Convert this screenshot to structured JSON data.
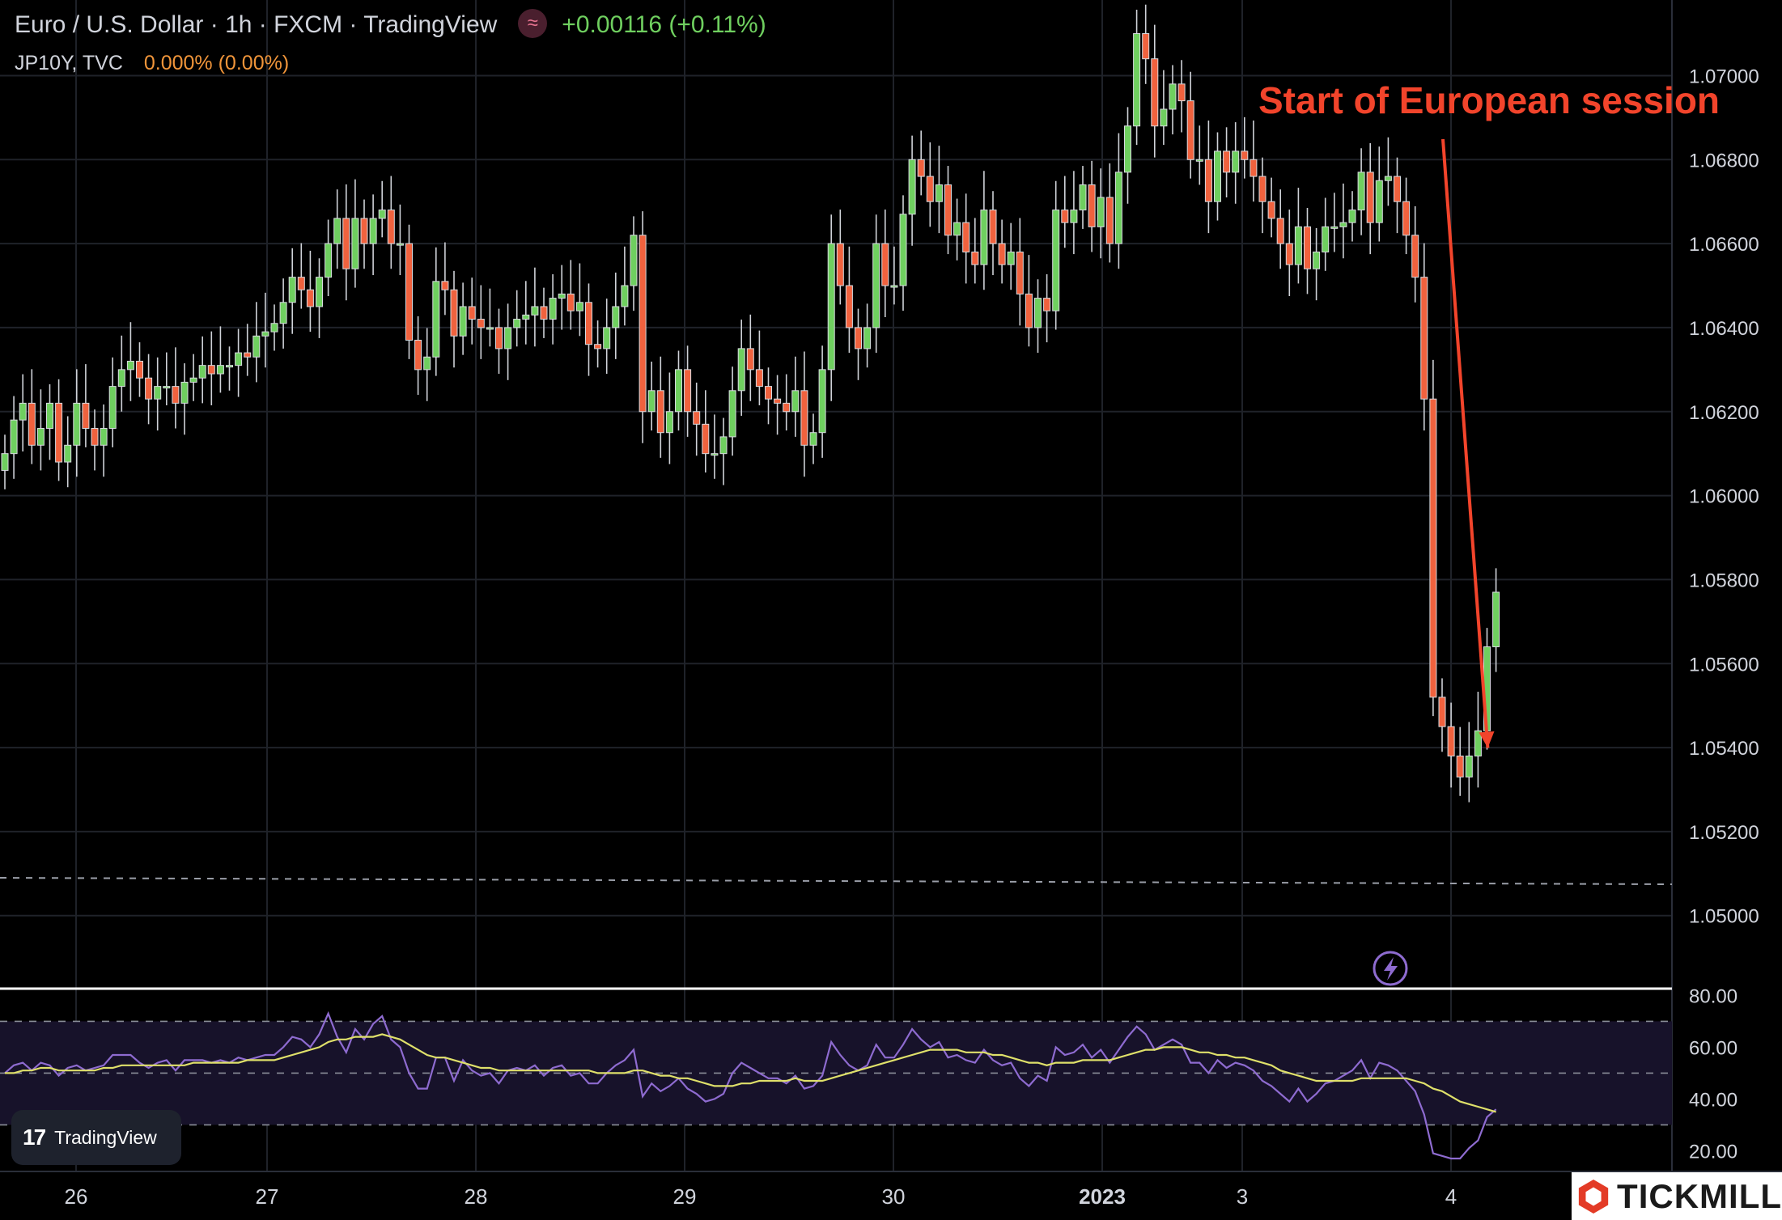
{
  "header": {
    "title": "Euro / U.S. Dollar · 1h · FXCM · TradingView",
    "change": "+0.00116 (+0.11%)",
    "secondary_symbol": "JP10Y, TVC",
    "secondary_value": "0.000% (0.00%)",
    "logo_glyph": "≈"
  },
  "badges": {
    "tradingview_label": "TradingView",
    "tradingview_mark": "17",
    "tickmill_label": "TICKMILL"
  },
  "colors": {
    "up": "#6fcf5f",
    "down": "#f0623e",
    "annotation": "#f2442b",
    "rsi": "#8e6bd0",
    "rsi_ma": "#dfe06a"
  },
  "chart_data": [
    {
      "type": "candlestick",
      "title": "Euro / U.S. Dollar · 1h · FXCM · TradingView",
      "xlabel": "",
      "ylabel": "",
      "x_tick_labels": [
        "26",
        "27",
        "28",
        "29",
        "30",
        "2023",
        "3",
        "4"
      ],
      "y_tick_labels": [
        "1.07000",
        "1.06800",
        "1.06600",
        "1.06400",
        "1.06200",
        "1.06000",
        "1.05800",
        "1.05600",
        "1.05400",
        "1.05200",
        "1.05000"
      ],
      "y_ticks": [
        1.07,
        1.068,
        1.066,
        1.064,
        1.062,
        1.06,
        1.058,
        1.056,
        1.054,
        1.052,
        1.05
      ],
      "ylim": [
        1.0483,
        1.0718
      ],
      "dashed_level": 1.0509,
      "annotation": {
        "text": "Start of European session",
        "points_to_bar": 164
      },
      "ohlc_close_sequence": [
        1.061,
        1.0618,
        1.0622,
        1.0612,
        1.0616,
        1.0622,
        1.0608,
        1.0612,
        1.0622,
        1.0616,
        1.0612,
        1.0616,
        1.0626,
        1.063,
        1.0632,
        1.0628,
        1.0623,
        1.0626,
        1.0626,
        1.0622,
        1.0627,
        1.0628,
        1.0631,
        1.0629,
        1.0631,
        1.0631,
        1.0634,
        1.0633,
        1.0638,
        1.0639,
        1.0641,
        1.0646,
        1.0652,
        1.0649,
        1.0645,
        1.0652,
        1.066,
        1.0666,
        1.0654,
        1.0666,
        1.066,
        1.0666,
        1.0668,
        1.066,
        1.066,
        1.0637,
        1.063,
        1.0633,
        1.0651,
        1.0649,
        1.0638,
        1.0645,
        1.0642,
        1.064,
        1.064,
        1.0635,
        1.064,
        1.0642,
        1.0643,
        1.0645,
        1.0642,
        1.0647,
        1.0648,
        1.0644,
        1.0646,
        1.0636,
        1.0635,
        1.064,
        1.0645,
        1.065,
        1.0662,
        1.062,
        1.0625,
        1.0615,
        1.062,
        1.063,
        1.062,
        1.0617,
        1.061,
        1.061,
        1.0614,
        1.0625,
        1.0635,
        1.063,
        1.0626,
        1.0623,
        1.0622,
        1.062,
        1.0625,
        1.0612,
        1.0615,
        1.063,
        1.066,
        1.065,
        1.064,
        1.0635,
        1.064,
        1.066,
        1.065,
        1.065,
        1.0667,
        1.068,
        1.0676,
        1.067,
        1.0674,
        1.0662,
        1.0665,
        1.0658,
        1.0655,
        1.0668,
        1.066,
        1.0655,
        1.0658,
        1.0648,
        1.064,
        1.0647,
        1.0644,
        1.0668,
        1.0665,
        1.0668,
        1.0674,
        1.0664,
        1.0671,
        1.066,
        1.0677,
        1.0688,
        1.071,
        1.0704,
        1.0688,
        1.0692,
        1.0698,
        1.0694,
        1.068,
        1.068,
        1.067,
        1.0682,
        1.0677,
        1.0682,
        1.068,
        1.0676,
        1.067,
        1.0666,
        1.066,
        1.0655,
        1.0664,
        1.0654,
        1.0658,
        1.0664,
        1.0664,
        1.0665,
        1.0668,
        1.0677,
        1.0665,
        1.0675,
        1.0676,
        1.067,
        1.0662,
        1.0652,
        1.0623,
        1.0552,
        1.0545,
        1.0538,
        1.0533,
        1.0538,
        1.0544,
        1.0564,
        1.0577
      ]
    },
    {
      "type": "line",
      "title": "",
      "y_tick_labels": [
        "80.00",
        "60.00",
        "40.00",
        "20.00"
      ],
      "y_ticks": [
        80,
        60,
        40,
        20
      ],
      "ylim": [
        12,
        82
      ],
      "band": [
        30,
        70
      ],
      "mid_line": 50,
      "series": [
        {
          "values": [
            50,
            53,
            54,
            51,
            54,
            53,
            49,
            52,
            53,
            51,
            52,
            53,
            57,
            57,
            57,
            54,
            52,
            54,
            55,
            51,
            55,
            55,
            55,
            54,
            55,
            54,
            56,
            55,
            56,
            57,
            57,
            60,
            64,
            63,
            60,
            65,
            73,
            64,
            58,
            67,
            63,
            69,
            72,
            63,
            60,
            50,
            44,
            44,
            56,
            56,
            47,
            55,
            51,
            49,
            50,
            46,
            51,
            52,
            51,
            53,
            49,
            52,
            53,
            49,
            50,
            46,
            46,
            50,
            53,
            55,
            59,
            41,
            46,
            43,
            45,
            48,
            44,
            42,
            39,
            40,
            42,
            50,
            54,
            52,
            50,
            48,
            48,
            46,
            49,
            44,
            45,
            49,
            62,
            57,
            53,
            51,
            53,
            61,
            56,
            56,
            61,
            67,
            63,
            60,
            62,
            56,
            57,
            55,
            54,
            59,
            55,
            53,
            54,
            48,
            45,
            49,
            47,
            60,
            57,
            58,
            61,
            56,
            59,
            54,
            59,
            64,
            68,
            65,
            59,
            61,
            63,
            61,
            54,
            54,
            50,
            55,
            52,
            54,
            53,
            51,
            47,
            45,
            42,
            39,
            44,
            39,
            42,
            46,
            47,
            49,
            51,
            55,
            48,
            54,
            53,
            51,
            47,
            43,
            34,
            19,
            18,
            17,
            17,
            21,
            24,
            33,
            36
          ]
        },
        {
          "values": [
            50,
            50,
            51,
            51,
            52,
            52,
            51,
            51,
            51,
            51,
            51,
            52,
            52,
            53,
            53,
            53,
            53,
            53,
            53,
            53,
            53,
            54,
            54,
            54,
            54,
            54,
            54,
            55,
            55,
            55,
            55,
            56,
            57,
            58,
            59,
            60,
            62,
            63,
            63,
            64,
            64,
            64,
            65,
            64,
            63,
            61,
            59,
            57,
            56,
            56,
            55,
            54,
            53,
            52,
            52,
            51,
            51,
            51,
            51,
            51,
            51,
            51,
            51,
            51,
            51,
            51,
            50,
            50,
            50,
            50,
            51,
            51,
            50,
            49,
            49,
            48,
            48,
            47,
            46,
            45,
            45,
            45,
            46,
            46,
            47,
            47,
            47,
            47,
            48,
            47,
            47,
            47,
            48,
            49,
            50,
            51,
            52,
            53,
            54,
            55,
            56,
            57,
            58,
            59,
            59,
            59,
            59,
            58,
            58,
            58,
            57,
            57,
            56,
            55,
            54,
            54,
            53,
            54,
            54,
            54,
            55,
            55,
            55,
            55,
            56,
            57,
            58,
            59,
            59,
            60,
            60,
            60,
            59,
            58,
            58,
            57,
            57,
            56,
            56,
            55,
            54,
            53,
            51,
            50,
            49,
            48,
            47,
            47,
            47,
            47,
            47,
            48,
            48,
            48,
            48,
            48,
            48,
            47,
            46,
            44,
            43,
            41,
            39,
            38,
            37,
            36,
            35
          ]
        }
      ]
    }
  ]
}
